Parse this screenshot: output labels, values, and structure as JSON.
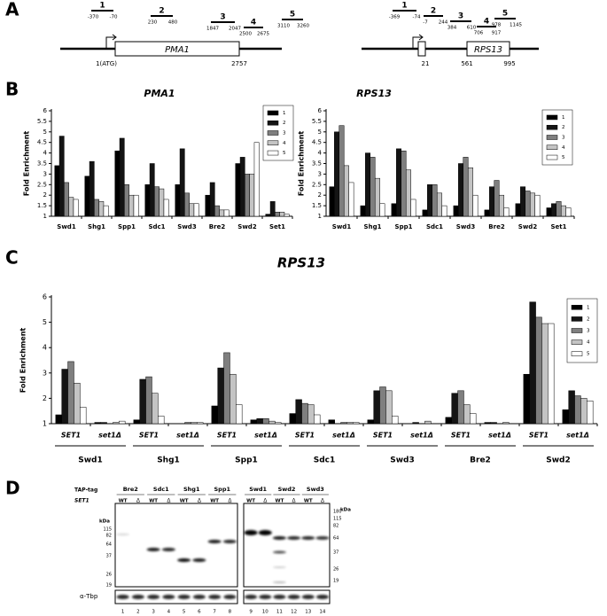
{
  "panel_labels": [
    "A",
    "B",
    "C",
    "D"
  ],
  "genes": [
    {
      "name": "PMA1",
      "primers": [
        {
          "label": "1",
          "start": -370,
          "end": -70
        },
        {
          "label": "2",
          "start": 230,
          "end": 480
        },
        {
          "label": "3",
          "start": 1847,
          "end": 2047
        },
        {
          "label": "4",
          "start": 2500,
          "end": 2675
        },
        {
          "label": "5",
          "start": 3110,
          "end": 3260
        }
      ],
      "marks": [
        "1(ATG)",
        2757
      ]
    },
    {
      "name": "RPS13",
      "primers": [
        {
          "label": "1",
          "start": -369,
          "end": -74
        },
        {
          "label": "2",
          "start": -7,
          "end": 244
        },
        {
          "label": "3",
          "start": 384,
          "end": 610
        },
        {
          "label": "4",
          "start": 706,
          "end": 917
        },
        {
          "label": "5",
          "start": 978,
          "end": 1145
        }
      ],
      "marks": [
        21,
        561,
        995
      ]
    }
  ],
  "chart_data": [
    {
      "type": "bar",
      "title": "PMA1",
      "y_label": "Fold Enrichment",
      "categories": [
        "Swd1",
        "Shg1",
        "Spp1",
        "Sdc1",
        "Swd3",
        "Bre2",
        "Swd2",
        "Set1"
      ],
      "series": [
        {
          "name": "1",
          "color": "#000000",
          "values": [
            3.4,
            2.9,
            4.1,
            2.5,
            2.5,
            2.0,
            3.5,
            1.1
          ]
        },
        {
          "name": "2",
          "color": "#141414",
          "values": [
            4.8,
            3.6,
            4.7,
            3.5,
            4.2,
            2.6,
            3.8,
            1.7
          ]
        },
        {
          "name": "3",
          "color": "#7f7f7f",
          "values": [
            2.6,
            1.8,
            2.5,
            2.4,
            2.1,
            1.5,
            3.0,
            1.2
          ]
        },
        {
          "name": "4",
          "color": "#c4c4c4",
          "values": [
            1.9,
            1.7,
            2.0,
            2.3,
            1.6,
            1.3,
            3.0,
            1.2
          ]
        },
        {
          "name": "5",
          "color": "#ffffff",
          "values": [
            1.8,
            1.5,
            2.0,
            1.8,
            1.6,
            1.3,
            4.5,
            1.1
          ]
        }
      ],
      "ylim": [
        1,
        6
      ],
      "yticks": [
        1,
        1.5,
        2,
        2.5,
        3,
        3.5,
        4,
        4.5,
        5,
        5.5,
        6
      ],
      "legend": "upper right"
    },
    {
      "type": "bar",
      "title": "RPS13",
      "y_label": "Fold Enrichment",
      "categories": [
        "Swd1",
        "Shg1",
        "Spp1",
        "Sdc1",
        "Swd3",
        "Bre2",
        "Swd2",
        "Set1"
      ],
      "series": [
        {
          "name": "1",
          "color": "#000000",
          "values": [
            2.4,
            1.5,
            1.6,
            1.3,
            1.5,
            1.3,
            1.6,
            1.4
          ]
        },
        {
          "name": "2",
          "color": "#141414",
          "values": [
            5.0,
            4.0,
            4.2,
            2.5,
            3.5,
            2.4,
            2.4,
            1.6
          ]
        },
        {
          "name": "3",
          "color": "#7f7f7f",
          "values": [
            5.3,
            3.8,
            4.1,
            2.5,
            3.8,
            2.7,
            2.2,
            1.7
          ]
        },
        {
          "name": "4",
          "color": "#c4c4c4",
          "values": [
            3.4,
            2.8,
            3.2,
            2.1,
            3.3,
            2.0,
            2.1,
            1.5
          ]
        },
        {
          "name": "5",
          "color": "#ffffff",
          "values": [
            2.6,
            1.6,
            1.8,
            1.5,
            2.0,
            1.4,
            2.0,
            1.4
          ]
        }
      ],
      "ylim": [
        1,
        6
      ],
      "yticks": [
        1,
        1.5,
        2,
        2.5,
        3,
        3.5,
        4,
        4.5,
        5,
        5.5,
        6
      ],
      "legend": "upper right"
    },
    {
      "type": "bar",
      "title": "RPS13",
      "y_label": "Fold Enrichment",
      "categories": [
        "SET1",
        "set1Δ",
        "SET1",
        "set1Δ",
        "SET1",
        "set1Δ",
        "SET1",
        "set1Δ",
        "SET1",
        "set1Δ",
        "SET1",
        "set1Δ",
        "SET1",
        "set1Δ"
      ],
      "groups": [
        "Swd1",
        "Shg1",
        "Spp1",
        "Sdc1",
        "Swd3",
        "Bre2",
        "Swd2"
      ],
      "series": [
        {
          "name": "1",
          "color": "#000000",
          "values": [
            1.35,
            1.05,
            1.15,
            1.0,
            1.7,
            1.15,
            1.4,
            1.15,
            1.15,
            1.0,
            1.25,
            1.05,
            2.95,
            1.55
          ]
        },
        {
          "name": "2",
          "color": "#141414",
          "values": [
            3.15,
            1.05,
            2.75,
            1.0,
            3.2,
            1.2,
            1.95,
            1.0,
            2.3,
            1.05,
            2.2,
            1.05,
            5.8,
            2.3
          ]
        },
        {
          "name": "3",
          "color": "#7f7f7f",
          "values": [
            3.45,
            1.0,
            2.85,
            1.05,
            3.8,
            1.2,
            1.8,
            1.05,
            2.45,
            1.0,
            2.3,
            1.0,
            5.2,
            2.1
          ]
        },
        {
          "name": "4",
          "color": "#c4c4c4",
          "values": [
            2.6,
            1.05,
            2.2,
            1.05,
            2.95,
            1.1,
            1.75,
            1.05,
            2.3,
            1.1,
            1.75,
            1.05,
            4.95,
            2.0
          ]
        },
        {
          "name": "5",
          "color": "#ffffff",
          "values": [
            1.65,
            1.1,
            1.3,
            1.05,
            1.75,
            1.05,
            1.35,
            1.05,
            1.3,
            1.0,
            1.4,
            1.0,
            4.95,
            1.9
          ]
        }
      ],
      "ylim": [
        1,
        6
      ],
      "yticks": [
        1,
        2,
        3,
        4,
        5,
        6
      ],
      "legend": "upper right"
    }
  ],
  "blot": {
    "tap_tag_label": "TAP-tag",
    "set1_label": "SET1",
    "tags": [
      "Bre2",
      "Sdc1",
      "Shg1",
      "Spp1",
      "Swd1",
      "Swd2",
      "Swd3"
    ],
    "genotypes": [
      "WT",
      "Δ"
    ],
    "kda_label": "kDa",
    "markers_left": [
      115,
      82,
      64,
      37,
      26,
      19
    ],
    "markers_right": [
      180,
      115,
      82,
      64,
      37,
      26,
      19
    ],
    "lanes": [
      1,
      2,
      3,
      4,
      5,
      6,
      7,
      8,
      9,
      10,
      11,
      12,
      13,
      14
    ],
    "loading_label": "α-Tbp"
  }
}
